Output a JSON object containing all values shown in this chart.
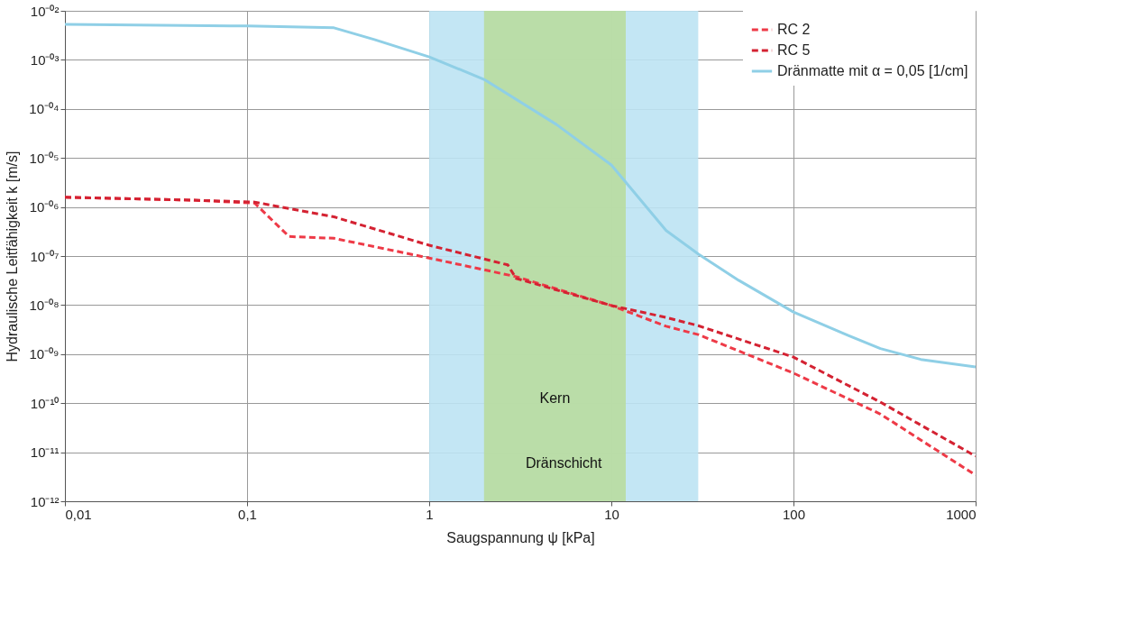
{
  "chart_data": {
    "type": "line",
    "xlabel": "Saugspannung ψ [kPa]",
    "ylabel": "Hydraulische Leitfähigkeit k [m/s]",
    "log": "xy",
    "grid": true,
    "legend": "top right",
    "xlim": [
      0.01,
      1000
    ],
    "ylim": [
      1e-12,
      0.01
    ],
    "xticks": [
      {
        "value": 0.01,
        "label": "0,01"
      },
      {
        "value": 0.1,
        "label": "0,1"
      },
      1,
      10,
      100,
      {
        "value": 1000,
        "label": "1000"
      }
    ],
    "yticks": [
      {
        "value": 1e-12,
        "label": "10⁻¹²"
      },
      {
        "value": 1e-11,
        "label": "10⁻¹¹"
      },
      {
        "value": 1e-10,
        "label": "10⁻¹⁰"
      },
      {
        "value": 1e-09,
        "label": "10⁻⁰⁹"
      },
      {
        "value": 1e-08,
        "label": "10⁻⁰⁸"
      },
      {
        "value": 1e-07,
        "label": "10⁻⁰⁷"
      },
      {
        "value": 1e-06,
        "label": "10⁻⁰⁶"
      },
      {
        "value": 1e-05,
        "label": "10⁻⁰⁵"
      },
      {
        "value": 0.0001,
        "label": "10⁻⁰⁴"
      },
      {
        "value": 0.001,
        "label": "10⁻⁰³"
      },
      {
        "value": 0.01,
        "label": "10⁻⁰²"
      }
    ],
    "bands": [
      {
        "axis": "x",
        "from": 1,
        "to": 30,
        "label": "Dränschicht",
        "color": "#bde3f3"
      },
      {
        "axis": "x",
        "from": 2,
        "to": 12,
        "label": "Kern",
        "color": "#b9dca0"
      }
    ],
    "series": [
      {
        "name": "RC 2",
        "color": "#ee3a47",
        "line_style": "dashed",
        "x": [
          0.01,
          0.05,
          0.11,
          0.17,
          0.3,
          1,
          3,
          10,
          20,
          30,
          100,
          300,
          1000
        ],
        "values": [
          1.58e-06,
          1.38e-06,
          1.2e-06,
          2.5e-07,
          2.3e-07,
          9.1e-08,
          3.8e-08,
          9.8e-09,
          3.7e-09,
          2.5e-09,
          4.1e-10,
          6e-11,
          3.4e-12
        ]
      },
      {
        "name": "RC 5",
        "color": "#d42232",
        "line_style": "dashed",
        "x": [
          0.01,
          0.05,
          0.11,
          0.3,
          1,
          2.7,
          3,
          10,
          20,
          30,
          100,
          300,
          1000
        ],
        "values": [
          1.58e-06,
          1.38e-06,
          1.26e-06,
          6.3e-07,
          1.66e-07,
          6.6e-08,
          3.5e-08,
          9.8e-09,
          5.6e-09,
          3.8e-09,
          8.7e-10,
          1.05e-10,
          8.3e-12
        ]
      },
      {
        "name": "Dränmatte mit α = 0,05 [1/cm]",
        "color": "#8fcfe6",
        "line_style": "solid",
        "x": [
          0.01,
          0.1,
          0.3,
          0.5,
          1,
          2,
          5,
          10,
          20,
          30,
          50,
          100,
          200,
          300,
          500,
          1000
        ],
        "values": [
          0.0053,
          0.0049,
          0.0045,
          0.0026,
          0.00115,
          0.0004,
          4.8e-05,
          7.2e-06,
          3.3e-07,
          1.1e-07,
          3.2e-08,
          7.2e-09,
          2.4e-09,
          1.3e-09,
          7.8e-10,
          5.5e-10
        ]
      }
    ]
  }
}
